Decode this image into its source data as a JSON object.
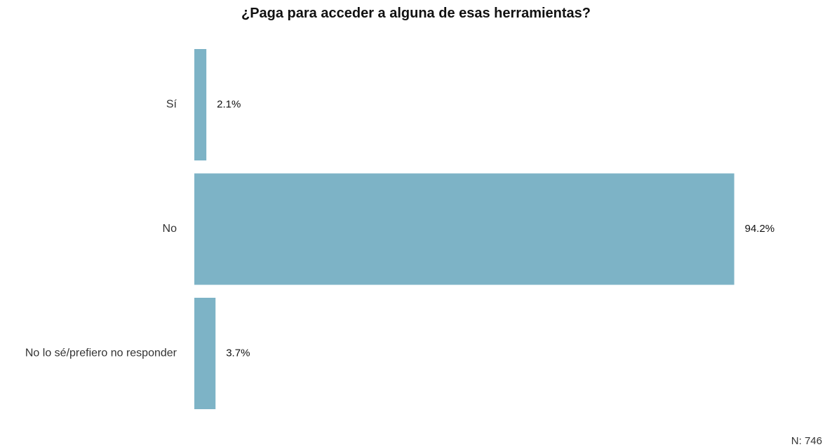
{
  "chart_data": {
    "type": "bar",
    "orientation": "horizontal",
    "title": "¿Paga para acceder a alguna de esas herramientas?",
    "categories": [
      "Sí",
      "No",
      "No lo sé/prefiero no responder"
    ],
    "values": [
      2.1,
      94.2,
      3.7
    ],
    "value_labels": [
      "2.1%",
      "94.2%",
      "3.7%"
    ],
    "unit": "%",
    "xlim": [
      0,
      100
    ],
    "grid": false,
    "legend": "none",
    "bar_color": "#7db3c6",
    "note": "N: 746"
  }
}
